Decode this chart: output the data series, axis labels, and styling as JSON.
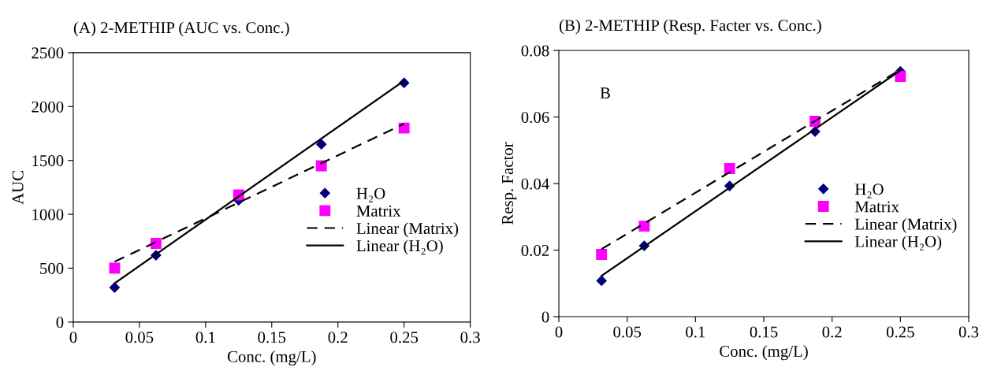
{
  "chart_data": [
    {
      "type": "scatter",
      "title": "(A) 2-METHIP (AUC vs. Conc.)",
      "xlabel": "Conc. (mg/L)",
      "ylabel": "AUC",
      "xlim": [
        0,
        0.3
      ],
      "xticks": [
        0,
        0.05,
        0.1,
        0.15,
        0.2,
        0.25,
        0.3
      ],
      "ylim": [
        0,
        2500
      ],
      "yticks": [
        0,
        500,
        1000,
        1500,
        2000,
        2500
      ],
      "grid": false,
      "legend": "right",
      "series": [
        {
          "name": "H₂O",
          "color": "#000080",
          "marker": "diamond",
          "x": [
            0.03125,
            0.0625,
            0.125,
            0.1875,
            0.25
          ],
          "values": [
            320,
            620,
            1130,
            1650,
            2220
          ]
        },
        {
          "name": "Matrix",
          "color": "#ff00ff",
          "marker": "square",
          "x": [
            0.03125,
            0.0625,
            0.125,
            0.1875,
            0.25
          ],
          "values": [
            500,
            730,
            1180,
            1450,
            1800
          ]
        },
        {
          "name": "Linear (Matrix)",
          "type": "line",
          "color": "#000000",
          "line_style": "dashed",
          "x": [
            0.03125,
            0.25
          ],
          "values": [
            560,
            1840
          ]
        },
        {
          "name": "Linear (H₂O)",
          "type": "line",
          "color": "#000000",
          "line_style": "solid",
          "x": [
            0.03125,
            0.25
          ],
          "values": [
            360,
            2240
          ]
        }
      ]
    },
    {
      "type": "scatter",
      "title": "(B) 2-METHIP (Resp. Facter vs. Conc.)",
      "xlabel": "Conc. (mg/L)",
      "ylabel": "Resp. Factor",
      "xlim": [
        0,
        0.3
      ],
      "xticks": [
        0,
        0.05,
        0.1,
        0.15,
        0.2,
        0.25,
        0.3
      ],
      "ylim": [
        0,
        0.08
      ],
      "yticks": [
        0,
        0.02,
        0.04,
        0.06,
        0.08
      ],
      "grid": false,
      "legend": "right",
      "annotations": [
        "B"
      ],
      "series": [
        {
          "name": "H₂O",
          "color": "#000080",
          "marker": "diamond",
          "x": [
            0.03125,
            0.0625,
            0.125,
            0.1875,
            0.25
          ],
          "values": [
            0.0108,
            0.0213,
            0.0393,
            0.0556,
            0.0737
          ]
        },
        {
          "name": "Matrix",
          "color": "#ff00ff",
          "marker": "square",
          "x": [
            0.03125,
            0.0625,
            0.125,
            0.1875,
            0.25
          ],
          "values": [
            0.0187,
            0.0272,
            0.0445,
            0.0587,
            0.0722
          ]
        },
        {
          "name": "Linear (Matrix)",
          "type": "line",
          "color": "#000000",
          "line_style": "dashed",
          "x": [
            0.03125,
            0.25
          ],
          "values": [
            0.0203,
            0.0742
          ]
        },
        {
          "name": "Linear (H₂O)",
          "type": "line",
          "color": "#000000",
          "line_style": "solid",
          "x": [
            0.03125,
            0.25
          ],
          "values": [
            0.0123,
            0.074
          ]
        }
      ]
    }
  ]
}
